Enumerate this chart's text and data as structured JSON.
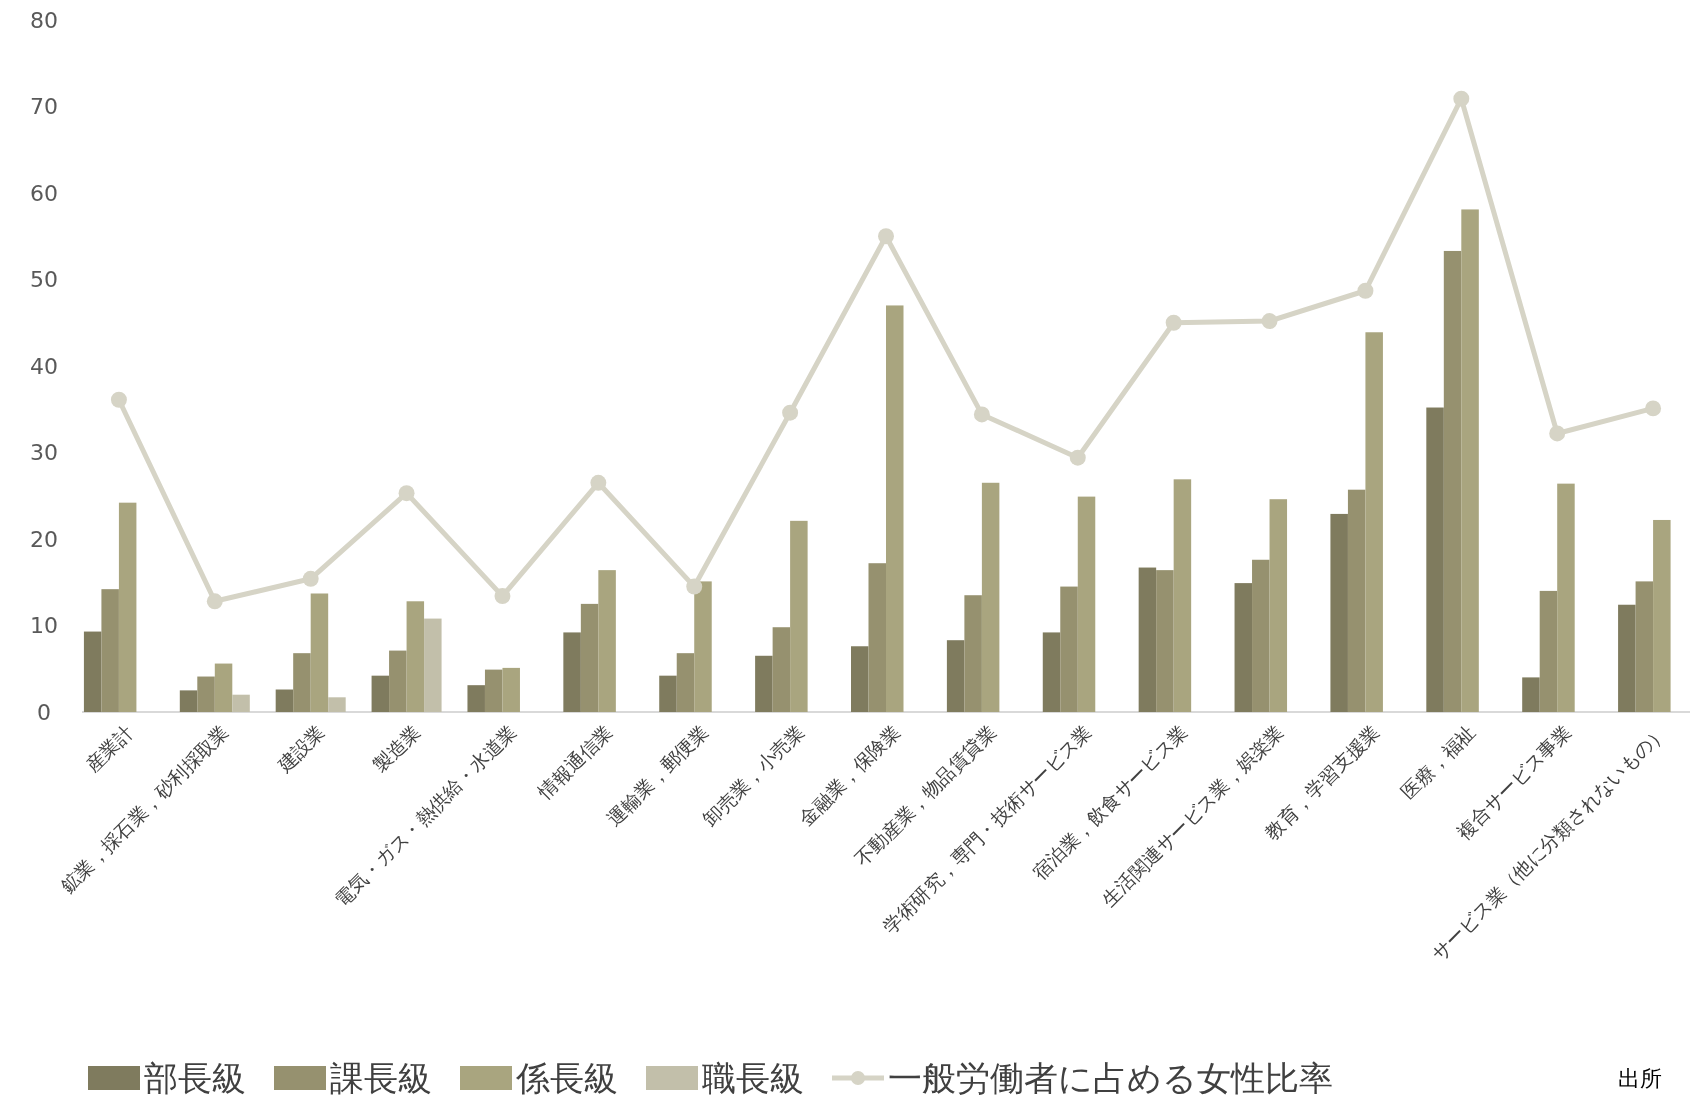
{
  "chart_data": {
    "type": "bar",
    "categories": [
      "産業計",
      "鉱業，採石業，砂利採取業",
      "建設業",
      "製造業",
      "電気・ガス・熱供給・水道業",
      "情報通信業",
      "運輸業，郵便業",
      "卸売業，小売業",
      "金融業，保険業",
      "不動産業，物品賃貸業",
      "学術研究，専門・技術サービス業",
      "宿泊業，飲食サービス業",
      "生活関連サービス業，娯楽業",
      "教育，学習支援業",
      "医療，福祉",
      "複合サービス事業",
      "サービス業（他に分類されないもの）"
    ],
    "series": [
      {
        "name": "部長級",
        "color": "#7f7b5e",
        "values": [
          9.3,
          2.5,
          2.6,
          4.2,
          3.1,
          9.2,
          4.2,
          6.5,
          7.6,
          8.3,
          9.2,
          16.7,
          14.9,
          22.9,
          35.2,
          4.0,
          12.4
        ]
      },
      {
        "name": "課長級",
        "color": "#96916f",
        "values": [
          14.2,
          4.1,
          6.8,
          7.1,
          4.9,
          12.5,
          6.8,
          9.8,
          17.2,
          13.5,
          14.5,
          16.4,
          17.6,
          25.7,
          53.3,
          14.0,
          15.1
        ]
      },
      {
        "name": "係長級",
        "color": "#a9a57f",
        "values": [
          24.2,
          5.6,
          13.7,
          12.8,
          5.1,
          16.4,
          15.1,
          22.1,
          47.0,
          26.5,
          24.9,
          26.9,
          24.6,
          43.9,
          58.1,
          26.4,
          22.2
        ]
      },
      {
        "name": "職長級",
        "color": "#c2bfaa",
        "values": [
          null,
          2.0,
          1.7,
          10.8,
          null,
          null,
          null,
          null,
          null,
          null,
          null,
          null,
          null,
          null,
          null,
          null,
          null
        ]
      },
      {
        "name": "一般労働者に占める女性比率",
        "type": "line",
        "color": "#d6d4c6",
        "marker": "circle",
        "values": [
          36.1,
          12.8,
          15.4,
          25.3,
          13.4,
          26.5,
          14.5,
          34.6,
          55.0,
          34.4,
          29.4,
          45.0,
          45.2,
          48.7,
          70.9,
          32.2,
          35.1
        ]
      }
    ],
    "ylim": [
      0,
      80
    ],
    "yticks": [
      0,
      10,
      20,
      30,
      40,
      50,
      60,
      70,
      80
    ],
    "grid": false,
    "legend": "bottom",
    "annotations": [
      "出所"
    ]
  }
}
